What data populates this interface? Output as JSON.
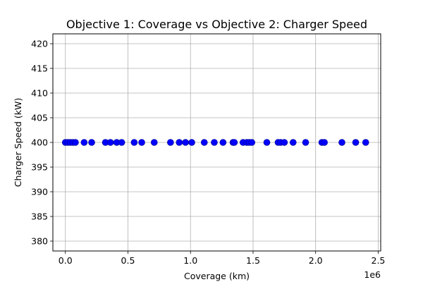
{
  "chart_data": {
    "type": "scatter",
    "title": "Objective 1: Coverage vs Objective 2: Charger Speed",
    "xlabel": "Coverage (km)",
    "ylabel": "Charger Speed (kW)",
    "x_offset_label": "1e6",
    "xlim": [
      -100000,
      2520000
    ],
    "ylim": [
      378,
      422
    ],
    "x_ticks": [
      0.0,
      0.5,
      1.0,
      1.5,
      2.0,
      2.5
    ],
    "x_tick_labels": [
      "0.0",
      "0.5",
      "1.0",
      "1.5",
      "2.0",
      "2.5"
    ],
    "y_ticks": [
      380,
      385,
      390,
      395,
      400,
      405,
      410,
      415,
      420
    ],
    "y_tick_labels": [
      "380",
      "385",
      "390",
      "395",
      "400",
      "405",
      "410",
      "415",
      "420"
    ],
    "grid": true,
    "point_color": "#0000ff",
    "point_edge_color": "#00007f",
    "series": [
      {
        "x": [
          0,
          20000,
          40000,
          60000,
          80000,
          150000,
          210000,
          320000,
          360000,
          410000,
          450000,
          550000,
          610000,
          710000,
          840000,
          910000,
          960000,
          1010000,
          1110000,
          1190000,
          1260000,
          1340000,
          1350000,
          1420000,
          1450000,
          1470000,
          1490000,
          1610000,
          1700000,
          1720000,
          1750000,
          1820000,
          1920000,
          2050000,
          2070000,
          2210000,
          2320000,
          2400000
        ],
        "y": [
          400,
          400,
          400,
          400,
          400,
          400,
          400,
          400,
          400,
          400,
          400,
          400,
          400,
          400,
          400,
          400,
          400,
          400,
          400,
          400,
          400,
          400,
          400,
          400,
          400,
          400,
          400,
          400,
          400,
          400,
          400,
          400,
          400,
          400,
          400,
          400,
          400,
          400
        ]
      }
    ]
  }
}
